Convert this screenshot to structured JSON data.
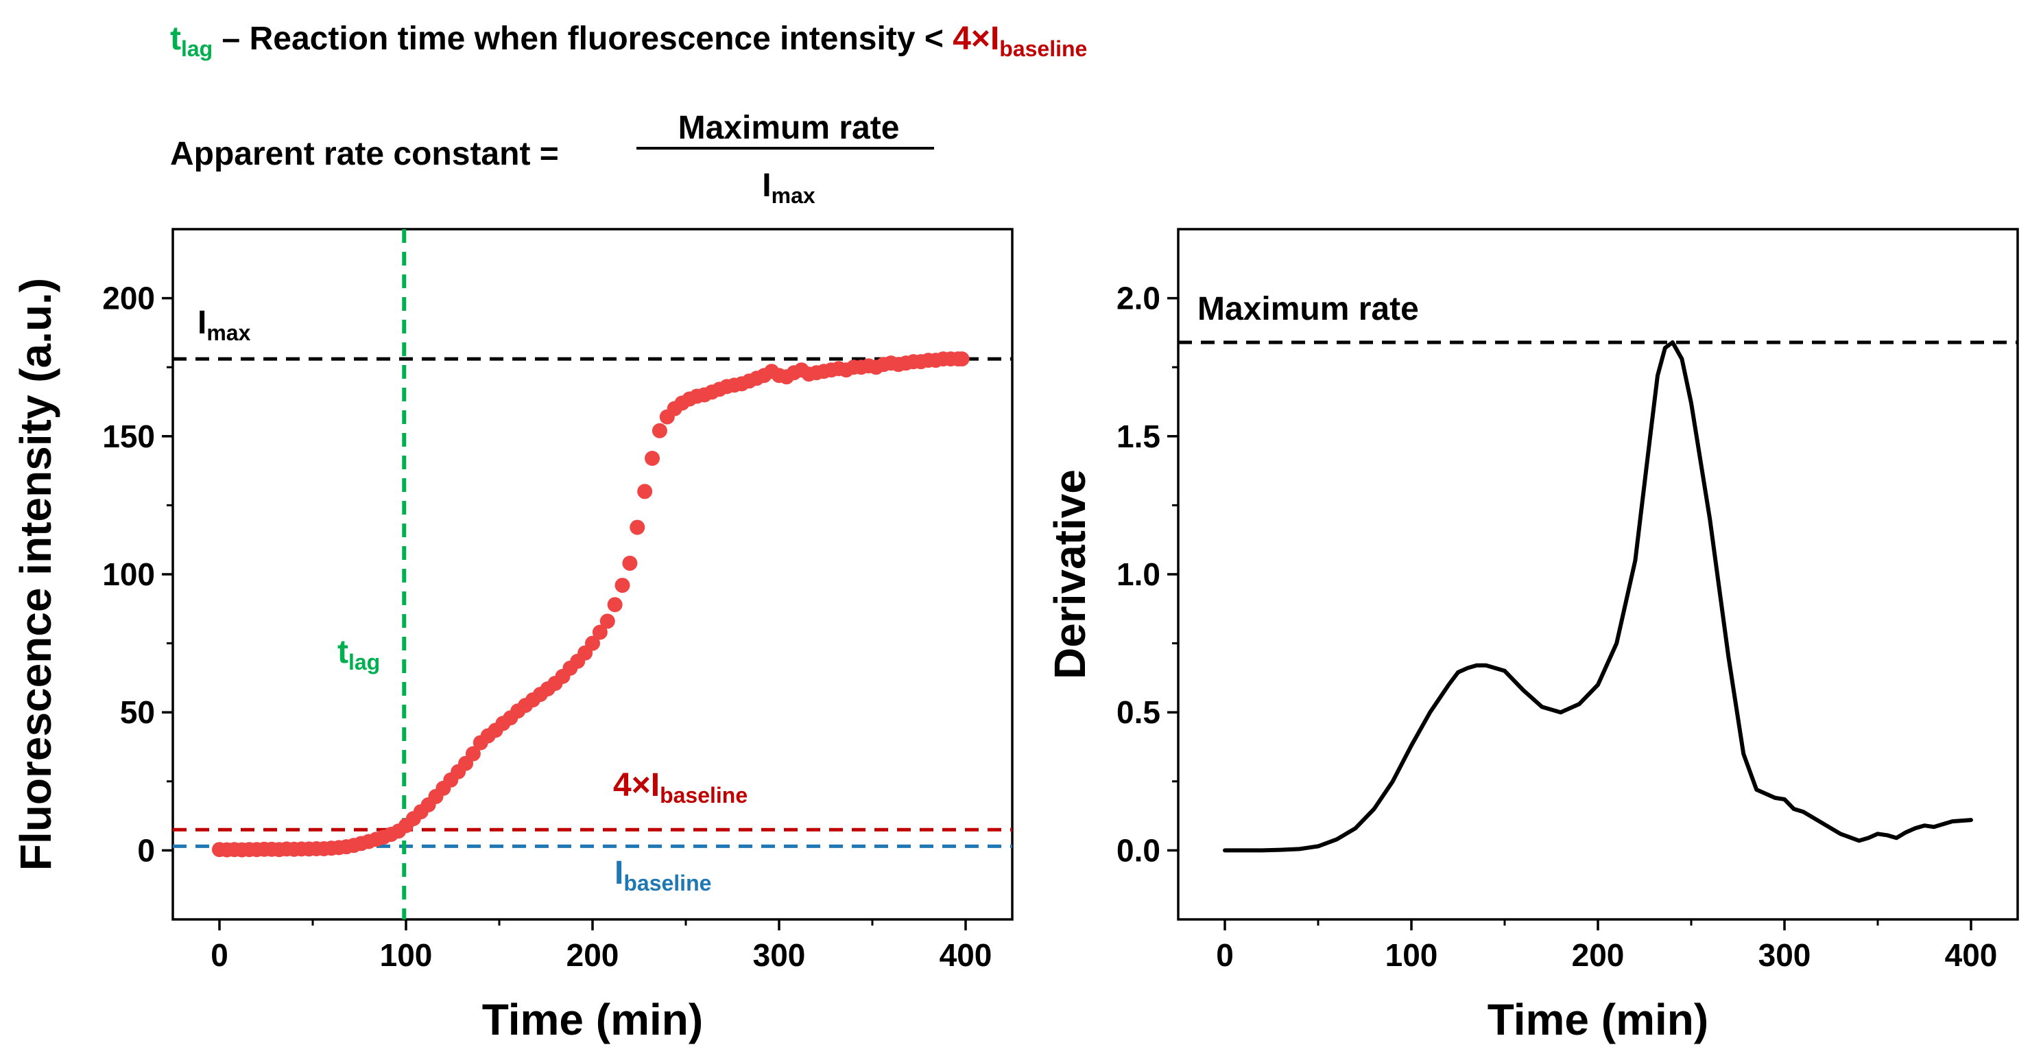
{
  "header": {
    "line1": {
      "tlag_main": "t",
      "tlag_sub": "lag",
      "middle": " – Reaction time when fluorescence intensity < ",
      "thr_main": "4×I",
      "thr_sub": "baseline"
    },
    "line2": {
      "lhs": "Apparent rate constant =",
      "numerator": "Maximum rate",
      "denom_main": "I",
      "denom_sub": "max"
    }
  },
  "colors": {
    "scatter": "#ef4444",
    "imax_line": "#000000",
    "threshold_line": "#c00000",
    "baseline_line": "#1f77b4",
    "tlag_line": "#00b050",
    "derivative_line": "#000000"
  },
  "chart_data": [
    {
      "type": "scatter",
      "xlabel": "Time (min)",
      "ylabel": "Fluorescence intensity (a.u.)",
      "xlim": [
        -25,
        425
      ],
      "ylim": [
        -25,
        225
      ],
      "xticks": [
        0,
        100,
        200,
        300,
        400
      ],
      "yticks": [
        0,
        50,
        100,
        150,
        200
      ],
      "xtick_labels": [
        "0",
        "100",
        "200",
        "300",
        "400"
      ],
      "ytick_labels": [
        "0",
        "50",
        "100",
        "150",
        "200"
      ],
      "series": [
        {
          "name": "Fluorescence intensity",
          "x": [
            0,
            4,
            8,
            12,
            16,
            20,
            24,
            28,
            32,
            36,
            40,
            44,
            48,
            52,
            56,
            60,
            64,
            68,
            72,
            76,
            80,
            84,
            88,
            92,
            96,
            100,
            104,
            108,
            112,
            116,
            120,
            124,
            128,
            132,
            136,
            140,
            144,
            148,
            152,
            156,
            160,
            164,
            168,
            172,
            176,
            180,
            184,
            188,
            192,
            196,
            200,
            204,
            208,
            212,
            216,
            220,
            224,
            228,
            232,
            236,
            240,
            244,
            248,
            252,
            256,
            260,
            264,
            268,
            272,
            276,
            280,
            284,
            288,
            292,
            296,
            300,
            304,
            308,
            312,
            316,
            320,
            324,
            328,
            332,
            336,
            340,
            344,
            348,
            352,
            356,
            360,
            364,
            368,
            372,
            376,
            380,
            384,
            388,
            392,
            396,
            398
          ],
          "y": [
            0.3,
            0.2,
            0.3,
            0.2,
            0.3,
            0.3,
            0.4,
            0.4,
            0.3,
            0.5,
            0.4,
            0.5,
            0.5,
            0.6,
            0.6,
            0.8,
            1.0,
            1.3,
            1.8,
            2.5,
            3.2,
            4.0,
            4.8,
            5.8,
            7.0,
            9.0,
            11.5,
            14.0,
            16.5,
            19.5,
            22.5,
            25.5,
            28.5,
            31.5,
            35.0,
            39.0,
            41.5,
            43.5,
            46.0,
            48.0,
            50.5,
            52.5,
            54.5,
            56.5,
            58.5,
            60.5,
            63.0,
            66.0,
            68.5,
            71.5,
            75.0,
            79.0,
            83.0,
            89.0,
            96.0,
            104.0,
            117.0,
            130.0,
            142.0,
            152.0,
            157.0,
            160.0,
            162.0,
            163.5,
            164.5,
            165.0,
            166.0,
            167.0,
            168.0,
            168.5,
            169.0,
            170.0,
            171.0,
            172.0,
            173.5,
            172.0,
            171.5,
            173.0,
            174.0,
            172.5,
            173.0,
            173.5,
            174.0,
            174.5,
            174.0,
            175.0,
            175.0,
            175.5,
            175.0,
            176.0,
            176.5,
            176.0,
            176.5,
            177.0,
            177.0,
            177.5,
            177.5,
            178.0,
            178.0,
            178.0,
            178.0
          ]
        }
      ],
      "reference_lines": [
        {
          "name": "I_max",
          "orientation": "horizontal",
          "value": 178,
          "label_main": "I",
          "label_sub": "max"
        },
        {
          "name": "4xI_baseline",
          "orientation": "horizontal",
          "value": 7.5,
          "label_main": "4×I",
          "label_sub": "baseline"
        },
        {
          "name": "I_baseline",
          "orientation": "horizontal",
          "value": 1.5,
          "label_main": "I",
          "label_sub": "baseline"
        },
        {
          "name": "t_lag",
          "orientation": "vertical",
          "value": 99,
          "label_main": "t",
          "label_sub": "lag"
        }
      ]
    },
    {
      "type": "line",
      "xlabel": "Time (min)",
      "ylabel": "Derivative",
      "xlim": [
        -25,
        425
      ],
      "ylim": [
        -0.25,
        2.25
      ],
      "xticks": [
        0,
        100,
        200,
        300,
        400
      ],
      "yticks": [
        0.0,
        0.5,
        1.0,
        1.5,
        2.0
      ],
      "xtick_labels": [
        "0",
        "100",
        "200",
        "300",
        "400"
      ],
      "ytick_labels": [
        "0.0",
        "0.5",
        "1.0",
        "1.5",
        "2.0"
      ],
      "series": [
        {
          "name": "Derivative",
          "x": [
            0,
            10,
            20,
            30,
            40,
            50,
            60,
            70,
            80,
            90,
            100,
            110,
            120,
            125,
            130,
            135,
            140,
            150,
            160,
            170,
            180,
            190,
            200,
            210,
            220,
            228,
            232,
            236,
            240,
            245,
            250,
            260,
            270,
            278,
            285,
            295,
            300,
            305,
            310,
            320,
            330,
            340,
            345,
            350,
            355,
            360,
            365,
            370,
            375,
            380,
            390,
            400
          ],
          "y": [
            0.0,
            0.0,
            0.0,
            0.002,
            0.005,
            0.015,
            0.04,
            0.08,
            0.15,
            0.25,
            0.38,
            0.5,
            0.6,
            0.645,
            0.66,
            0.67,
            0.67,
            0.65,
            0.58,
            0.52,
            0.5,
            0.53,
            0.6,
            0.75,
            1.05,
            1.5,
            1.72,
            1.82,
            1.84,
            1.78,
            1.62,
            1.2,
            0.7,
            0.35,
            0.22,
            0.19,
            0.185,
            0.15,
            0.14,
            0.1,
            0.06,
            0.035,
            0.045,
            0.06,
            0.055,
            0.045,
            0.065,
            0.08,
            0.09,
            0.085,
            0.105,
            0.11
          ]
        }
      ],
      "reference_lines": [
        {
          "name": "Maximum rate",
          "orientation": "horizontal",
          "value": 1.84,
          "label_main": "Maximum rate",
          "label_sub": ""
        }
      ]
    }
  ]
}
